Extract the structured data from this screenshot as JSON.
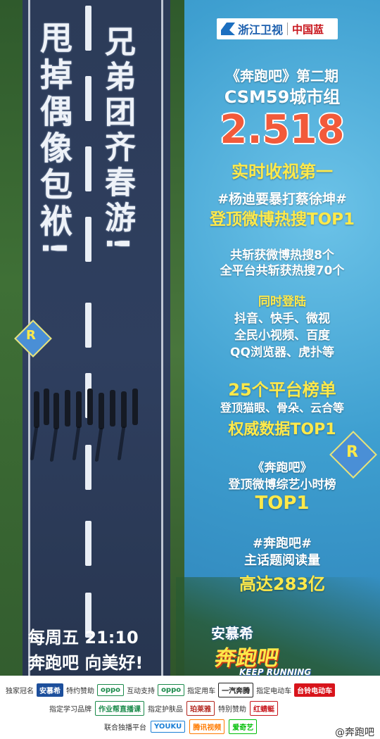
{
  "road": {
    "slogan_left": "甩掉偶像包袱!",
    "slogan_right": "兄弟团齐春游!",
    "airtime_line1": "每周五 21:10",
    "airtime_line2": "奔跑吧 向美好!"
  },
  "channel": {
    "name": "浙江卫视",
    "sub": "中国蓝"
  },
  "stats": {
    "program_line": "《奔跑吧》第二期",
    "rating_group": "CSM59城市组",
    "rating_value": "2.518",
    "rating_desc": "实时收视第一",
    "hashtag_1": "#杨迪要暴打蔡徐坤#",
    "hashtag_1_result": "登顶微博热搜TOP1",
    "weibo_hot_line": "共斩获微博热搜8个",
    "all_platform_line": "全平台共斩获热搜70个",
    "same_time_title": "同时登陆",
    "platforms_line1": "抖音、快手、微视",
    "platforms_line2": "全民小视频、百度",
    "platforms_line3": "QQ浏览器、虎扑等",
    "board_count": "25个平台榜单",
    "board_detail": "登顶猫眼、骨朵、云合等",
    "board_result": "权威数据TOP1",
    "show_title": "《奔跑吧》",
    "variety_line": "登顶微博综艺小时榜",
    "variety_result": "TOP1",
    "topic_hashtag": "#奔跑吧#",
    "topic_label": "主话题阅读量",
    "topic_value": "高达283亿"
  },
  "show_logo": {
    "brand": "安慕希",
    "name": "奔跑吧",
    "english": "KEEP RUNNING"
  },
  "kites": {
    "letter": "R"
  },
  "sponsors": {
    "row1": [
      {
        "label": "独家冠名",
        "brand": "安慕希",
        "color": "#1d4f9c",
        "text": "#ffffff"
      },
      {
        "label": "特约赞助",
        "brand": "oppo",
        "color": "#ffffff",
        "text": "#1a8a4a"
      },
      {
        "label": "互动支持",
        "brand": "oppo",
        "color": "#ffffff",
        "text": "#1a8a4a"
      },
      {
        "label": "指定用车",
        "brand": "一汽奔腾",
        "color": "#ffffff",
        "text": "#222222"
      },
      {
        "label": "指定电动车",
        "brand": "台铃电动车",
        "color": "#d8141b",
        "text": "#ffffff"
      }
    ],
    "row2": [
      {
        "label": "指定学习品牌",
        "brand": "作业帮直播课",
        "color": "#ffffff",
        "text": "#1a8a4a"
      },
      {
        "label": "指定护肤品",
        "brand": "珀莱雅",
        "color": "#ffffff",
        "text": "#b3261e"
      },
      {
        "label": "特别赞助",
        "brand": "红蜻蜓",
        "color": "#ffffff",
        "text": "#c8161d"
      }
    ],
    "row3_label": "联合独播平台",
    "row3": [
      {
        "brand": "YOUKU",
        "color": "#ffffff",
        "text": "#1a7fd6"
      },
      {
        "brand": "腾讯视频",
        "color": "#ffffff",
        "text": "#ff7a00"
      },
      {
        "brand": "爱奇艺",
        "color": "#ffffff",
        "text": "#00be06"
      }
    ],
    "weibo_handle": "@奔跑吧"
  }
}
